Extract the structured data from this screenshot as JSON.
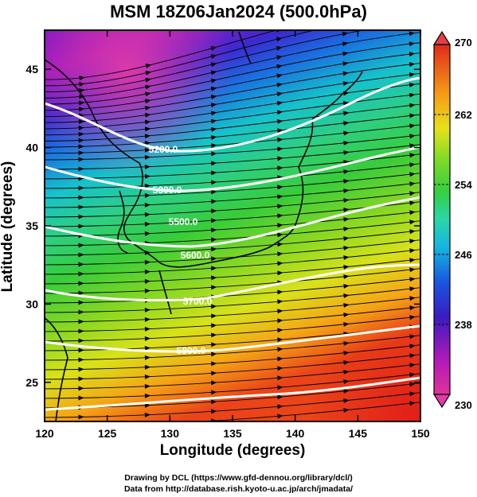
{
  "title": "MSM 18Z06Jan2024 (500.0hPa)",
  "axes": {
    "xlabel": "Longitude (degrees)",
    "ylabel": "Latitude  (degrees)",
    "xticks": [
      "120",
      "125",
      "130",
      "135",
      "140",
      "145",
      "150"
    ],
    "yticks": [
      "25",
      "30",
      "35",
      "40",
      "45"
    ],
    "xlim": [
      120,
      150
    ],
    "ylim": [
      22.5,
      47.5
    ]
  },
  "colorbar": {
    "ticks": [
      "270",
      "262",
      "254",
      "246",
      "238",
      "230"
    ],
    "range": [
      230,
      270
    ],
    "colors": [
      "#d61a6e",
      "#b01ab8",
      "#6a1cc6",
      "#2a36d8",
      "#0f8de0",
      "#1dd3d0",
      "#2fcf55",
      "#5ad62a",
      "#b7e21c",
      "#f4d21a",
      "#f48a14",
      "#e5371a"
    ]
  },
  "contours": {
    "labels": [
      "5200.0",
      "5300.0",
      "5500.0",
      "5600.0",
      "5700.0",
      "5800.0"
    ]
  },
  "credits": {
    "line1": "Drawing by DCL (https://www.gfd-dennou.org/library/dcl/)",
    "line2": "Data from http://database.rish.kyoto-u.ac.jp/arch/jmadata/"
  }
}
